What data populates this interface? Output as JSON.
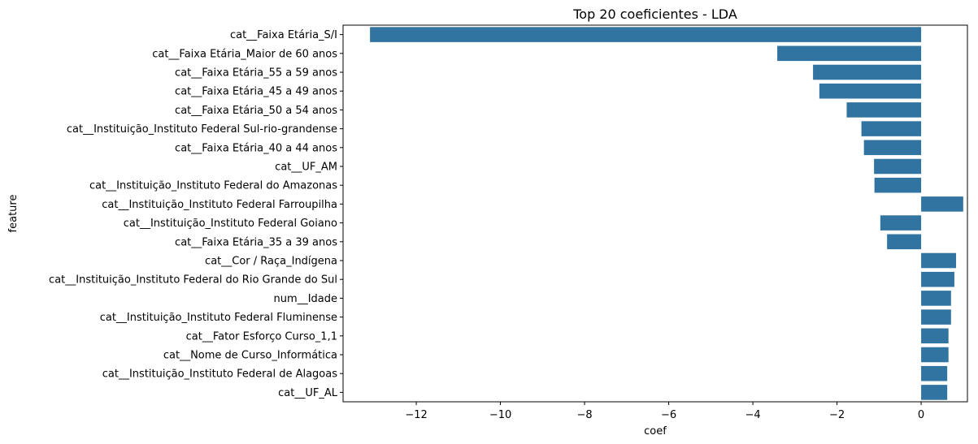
{
  "chart_data": {
    "type": "bar",
    "orientation": "horizontal",
    "title": "Top 20 coeficientes - LDA",
    "xlabel": "coef",
    "ylabel": "feature",
    "xlim": [
      -13.74,
      1.1
    ],
    "xticks": [
      -12,
      -10,
      -8,
      -6,
      -4,
      -2,
      0
    ],
    "xtick_labels": [
      "−12",
      "−10",
      "−8",
      "−6",
      "−4",
      "−2",
      "0"
    ],
    "grid": false,
    "bar_color": "#3274a1",
    "categories": [
      "cat__Faixa Etária_S/I",
      "cat__Faixa Etária_Maior de 60 anos",
      "cat__Faixa Etária_55 a 59 anos",
      "cat__Faixa Etária_45 a 49 anos",
      "cat__Faixa Etária_50 a 54 anos",
      "cat__Instituição_Instituto Federal Sul-rio-grandense",
      "cat__Faixa Etária_40 a 44 anos",
      "cat__UF_AM",
      "cat__Instituição_Instituto Federal do Amazonas",
      "cat__Instituição_Instituto Federal Farroupilha",
      "cat__Instituição_Instituto Federal Goiano",
      "cat__Faixa Etária_35 a 39 anos",
      "cat__Cor / Raça_Indígena",
      "cat__Instituição_Instituto Federal do Rio Grande do Sul",
      "num__Idade",
      "cat__Instituição_Instituto Federal Fluminense",
      "cat__Fator Esforço Curso_1,1",
      "cat__Nome de Curso_Informática",
      "cat__Instituição_Instituto Federal de Alagoas",
      "cat__UF_AL"
    ],
    "values": [
      -13.1,
      -3.42,
      -2.57,
      -2.42,
      -1.77,
      -1.42,
      -1.36,
      -1.12,
      -1.11,
      1.0,
      -0.97,
      -0.81,
      0.83,
      0.79,
      0.71,
      0.71,
      0.65,
      0.65,
      0.62,
      0.62
    ]
  }
}
